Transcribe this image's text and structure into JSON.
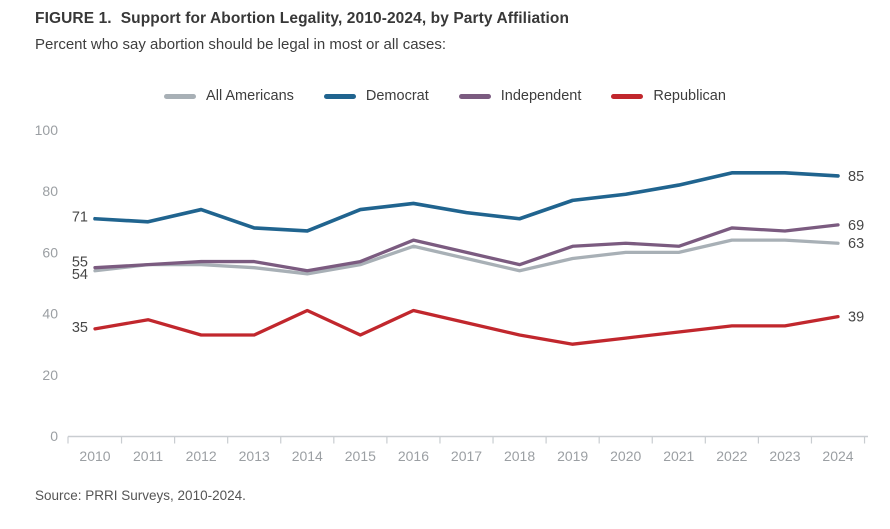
{
  "chart_data": {
    "type": "line",
    "figure_label": "FIGURE 1.",
    "title": "Support for Abortion Legality, 2010-2024, by Party Affiliation",
    "subtitle": "Percent who say abortion should be legal in most or all cases:",
    "source": "Source: PRRI Surveys, 2010-2024.",
    "x": [
      2010,
      2011,
      2012,
      2013,
      2014,
      2015,
      2016,
      2017,
      2018,
      2019,
      2020,
      2021,
      2022,
      2023,
      2024
    ],
    "series": [
      {
        "name": "All Americans",
        "color": "#a8b0b6",
        "values": [
          54,
          56,
          56,
          55,
          53,
          56,
          62,
          58,
          54,
          58,
          60,
          60,
          64,
          64,
          63
        ],
        "start_label": 54,
        "end_label": 63
      },
      {
        "name": "Democrat",
        "color": "#20648f",
        "values": [
          71,
          70,
          74,
          68,
          67,
          74,
          76,
          73,
          71,
          77,
          79,
          82,
          86,
          86,
          85
        ],
        "start_label": 71,
        "end_label": 85
      },
      {
        "name": "Independent",
        "color": "#7b5b80",
        "values": [
          55,
          56,
          57,
          57,
          54,
          57,
          64,
          60,
          56,
          62,
          63,
          62,
          68,
          67,
          69
        ],
        "start_label": 55,
        "end_label": 69
      },
      {
        "name": "Republican",
        "color": "#c1272d",
        "values": [
          35,
          38,
          33,
          33,
          41,
          33,
          41,
          37,
          33,
          30,
          32,
          34,
          36,
          36,
          39
        ],
        "start_label": 35,
        "end_label": 39
      }
    ],
    "xlabel": "",
    "ylabel": "",
    "ylim": [
      0,
      100
    ],
    "yticks": [
      0,
      20,
      40,
      60,
      80,
      100
    ],
    "grid": false,
    "legend_position": "top",
    "axis_color": "#c9cdd1",
    "tick_label_color": "#9b9fa3",
    "annotation_color": "#474747"
  }
}
